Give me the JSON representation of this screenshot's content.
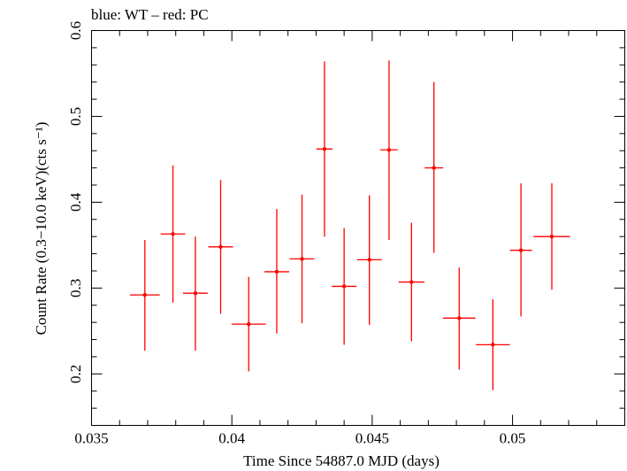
{
  "chart_data": {
    "type": "scatter",
    "title": "blue: WT – red: PC",
    "xlabel": "Time Since 54887.0 MJD (days)",
    "ylabel": "Count Rate (0.3−10.0 keV)(cts s⁻¹)",
    "xlim": [
      0.035,
      0.054
    ],
    "ylim": [
      0.14,
      0.6
    ],
    "x_ticks": [
      0.035,
      0.04,
      0.045,
      0.05
    ],
    "x_tick_labels": [
      "0.035",
      "0.04",
      "0.045",
      "0.05"
    ],
    "y_ticks": [
      0.2,
      0.3,
      0.4,
      0.5,
      0.6
    ],
    "y_tick_labels": [
      "0.2",
      "0.3",
      "0.4",
      "0.5",
      "0.6"
    ],
    "grid": false,
    "legend": "none",
    "series": [
      {
        "color": "#ff0000",
        "points": [
          {
            "x": 0.0369,
            "xerr": 0.00053,
            "y": 0.292,
            "ylo": 0.227,
            "yhi": 0.356
          },
          {
            "x": 0.0379,
            "xerr": 0.00044,
            "y": 0.363,
            "ylo": 0.283,
            "yhi": 0.443
          },
          {
            "x": 0.0387,
            "xerr": 0.00044,
            "y": 0.294,
            "ylo": 0.227,
            "yhi": 0.36
          },
          {
            "x": 0.0396,
            "xerr": 0.00044,
            "y": 0.348,
            "ylo": 0.27,
            "yhi": 0.426
          },
          {
            "x": 0.0406,
            "xerr": 0.00061,
            "y": 0.258,
            "ylo": 0.203,
            "yhi": 0.313
          },
          {
            "x": 0.0416,
            "xerr": 0.00044,
            "y": 0.319,
            "ylo": 0.247,
            "yhi": 0.392
          },
          {
            "x": 0.0425,
            "xerr": 0.00044,
            "y": 0.334,
            "ylo": 0.259,
            "yhi": 0.409
          },
          {
            "x": 0.0433,
            "xerr": 0.00029,
            "y": 0.462,
            "ylo": 0.36,
            "yhi": 0.564
          },
          {
            "x": 0.044,
            "xerr": 0.00044,
            "y": 0.302,
            "ylo": 0.234,
            "yhi": 0.37
          },
          {
            "x": 0.0449,
            "xerr": 0.00044,
            "y": 0.333,
            "ylo": 0.257,
            "yhi": 0.408
          },
          {
            "x": 0.0456,
            "xerr": 0.00031,
            "y": 0.461,
            "ylo": 0.356,
            "yhi": 0.565
          },
          {
            "x": 0.0464,
            "xerr": 0.00046,
            "y": 0.307,
            "ylo": 0.238,
            "yhi": 0.376
          },
          {
            "x": 0.0472,
            "xerr": 0.00033,
            "y": 0.44,
            "ylo": 0.341,
            "yhi": 0.54
          },
          {
            "x": 0.0481,
            "xerr": 0.00058,
            "y": 0.265,
            "ylo": 0.205,
            "yhi": 0.324
          },
          {
            "x": 0.0493,
            "xerr": 0.0006,
            "y": 0.234,
            "ylo": 0.181,
            "yhi": 0.287
          },
          {
            "x": 0.0503,
            "xerr": 0.00039,
            "y": 0.344,
            "ylo": 0.267,
            "yhi": 0.422
          },
          {
            "x": 0.0514,
            "xerr": 0.00065,
            "y": 0.36,
            "ylo": 0.298,
            "yhi": 0.422
          }
        ]
      }
    ]
  }
}
